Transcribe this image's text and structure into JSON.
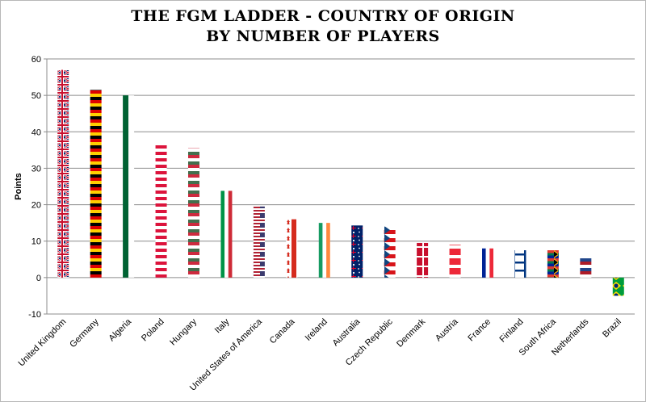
{
  "chart_data": {
    "type": "bar",
    "title_lines": [
      "THE FGM LADDER - COUNTRY OF ORIGIN",
      "BY NUMBER OF PLAYERS"
    ],
    "ylabel": "Points",
    "xlabel": "",
    "ylim": [
      -10,
      60
    ],
    "yticks": [
      -10,
      0,
      10,
      20,
      30,
      40,
      50,
      60
    ],
    "grid": true,
    "legend": "none",
    "categories": [
      "United Kingdom",
      "Germany",
      "Algeria",
      "Poland",
      "Hungary",
      "Italy",
      "United States of America",
      "Canada",
      "Ireland",
      "Australia",
      "Czech Republic",
      "Denmark",
      "Austria",
      "France",
      "Finland",
      "South Africa",
      "Netherlands",
      "Brazil"
    ],
    "values": [
      57,
      51.5,
      50,
      37,
      35.5,
      23.8,
      19.5,
      16,
      15,
      14.3,
      14,
      9.5,
      9,
      8,
      7.5,
      7.5,
      5.5,
      -5
    ],
    "bar_styles": [
      {
        "pattern": "uk",
        "colors": [
          "#012169",
          "#ffffff",
          "#c8102e"
        ]
      },
      {
        "pattern": "hstripes",
        "colors": [
          "#000000",
          "#dd0000",
          "#ffce00"
        ]
      },
      {
        "pattern": "vsplit",
        "colors": [
          "#006233",
          "#ffffff"
        ]
      },
      {
        "pattern": "hstripes",
        "colors": [
          "#ffffff",
          "#dc143c"
        ]
      },
      {
        "pattern": "hstripes",
        "colors": [
          "#cd2a3e",
          "#ffffff",
          "#436f4d"
        ]
      },
      {
        "pattern": "vstripes",
        "colors": [
          "#009246",
          "#ffffff",
          "#ce2b37"
        ]
      },
      {
        "pattern": "usa",
        "colors": [
          "#b22234",
          "#ffffff",
          "#3c3b6e"
        ]
      },
      {
        "pattern": "canada",
        "colors": [
          "#d52b1e",
          "#ffffff"
        ]
      },
      {
        "pattern": "vstripes",
        "colors": [
          "#169b62",
          "#ffffff",
          "#ff883e"
        ]
      },
      {
        "pattern": "australia",
        "colors": [
          "#012169",
          "#ffffff",
          "#e4002b"
        ]
      },
      {
        "pattern": "czech",
        "colors": [
          "#ffffff",
          "#d7141a",
          "#11457e"
        ]
      },
      {
        "pattern": "denmark",
        "colors": [
          "#c8102e",
          "#ffffff"
        ]
      },
      {
        "pattern": "hstripes",
        "colors": [
          "#ed2939",
          "#ffffff",
          "#ed2939"
        ]
      },
      {
        "pattern": "vstripes",
        "colors": [
          "#002395",
          "#ffffff",
          "#ed2939"
        ]
      },
      {
        "pattern": "finland",
        "colors": [
          "#ffffff",
          "#003580"
        ]
      },
      {
        "pattern": "southafrica",
        "colors": [
          "#007a4d",
          "#000000",
          "#ffb612",
          "#de3831",
          "#002395",
          "#ffffff"
        ]
      },
      {
        "pattern": "hstripes",
        "colors": [
          "#ae1c28",
          "#ffffff",
          "#21468b"
        ]
      },
      {
        "pattern": "brazil",
        "colors": [
          "#009c3b",
          "#ffdf00",
          "#002776"
        ]
      }
    ]
  }
}
